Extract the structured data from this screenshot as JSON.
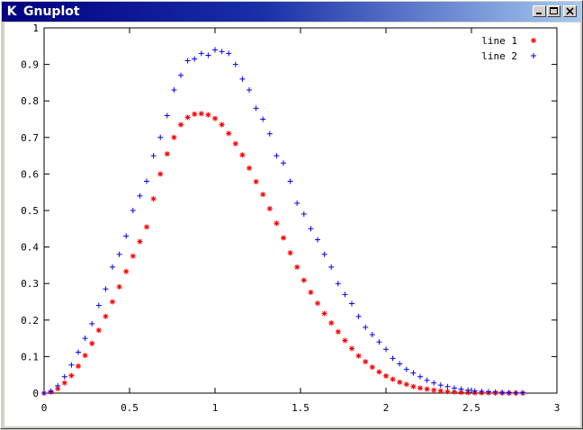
{
  "window": {
    "title": "Gnuplot",
    "icon": "k-icon",
    "controls": [
      "minimize-icon",
      "maximize-icon",
      "close-icon"
    ]
  },
  "chart_data": {
    "type": "scatter",
    "xlim": [
      0,
      3
    ],
    "ylim": [
      0,
      1
    ],
    "xticks": [
      "0",
      "0.5",
      "1",
      "1.5",
      "2",
      "2.5",
      "3"
    ],
    "yticks": [
      "0",
      "0.1",
      "0.2",
      "0.3",
      "0.4",
      "0.5",
      "0.6",
      "0.7",
      "0.8",
      "0.9",
      "1"
    ],
    "grid": false,
    "legend": "top-right",
    "series": [
      {
        "name": "line 1",
        "marker": "asterisk",
        "color": "#ff0000",
        "x": [
          0.0,
          0.04,
          0.08,
          0.12,
          0.16,
          0.2,
          0.24,
          0.28,
          0.32,
          0.36,
          0.4,
          0.44,
          0.48,
          0.52,
          0.56,
          0.6,
          0.64,
          0.68,
          0.72,
          0.76,
          0.8,
          0.84,
          0.88,
          0.92,
          0.96,
          1.0,
          1.04,
          1.08,
          1.12,
          1.16,
          1.2,
          1.24,
          1.28,
          1.32,
          1.36,
          1.4,
          1.44,
          1.48,
          1.52,
          1.56,
          1.6,
          1.64,
          1.68,
          1.72,
          1.76,
          1.8,
          1.84,
          1.88,
          1.92,
          1.96,
          2.0,
          2.04,
          2.08,
          2.12,
          2.16,
          2.2,
          2.24,
          2.28,
          2.32,
          2.36,
          2.4,
          2.44,
          2.48,
          2.52,
          2.56,
          2.6,
          2.64,
          2.68,
          2.72,
          2.76,
          2.8
        ],
        "y": [
          0.0,
          0.003,
          0.012,
          0.028,
          0.048,
          0.074,
          0.103,
          0.136,
          0.172,
          0.21,
          0.25,
          0.291,
          0.333,
          0.375,
          0.415,
          0.455,
          0.532,
          0.6,
          0.655,
          0.7,
          0.735,
          0.755,
          0.764,
          0.765,
          0.762,
          0.752,
          0.735,
          0.711,
          0.683,
          0.652,
          0.616,
          0.579,
          0.544,
          0.505,
          0.465,
          0.425,
          0.384,
          0.345,
          0.309,
          0.276,
          0.246,
          0.218,
          0.192,
          0.168,
          0.144,
          0.122,
          0.102,
          0.086,
          0.071,
          0.058,
          0.047,
          0.038,
          0.03,
          0.024,
          0.018,
          0.014,
          0.011,
          0.008,
          0.006,
          0.004,
          0.003,
          0.002,
          0.0015,
          0.001,
          0.0008,
          0.0006,
          0.0004,
          0.0003,
          0.0002,
          0.0001,
          0.0001
        ]
      },
      {
        "name": "line 2",
        "marker": "plus",
        "color": "#0000ff",
        "x": [
          0.0,
          0.04,
          0.08,
          0.12,
          0.16,
          0.2,
          0.24,
          0.28,
          0.32,
          0.36,
          0.4,
          0.44,
          0.48,
          0.52,
          0.56,
          0.6,
          0.64,
          0.68,
          0.72,
          0.76,
          0.8,
          0.84,
          0.88,
          0.92,
          0.96,
          1.0,
          1.04,
          1.08,
          1.12,
          1.16,
          1.2,
          1.24,
          1.28,
          1.32,
          1.36,
          1.4,
          1.44,
          1.48,
          1.52,
          1.56,
          1.6,
          1.64,
          1.68,
          1.72,
          1.76,
          1.8,
          1.84,
          1.88,
          1.92,
          1.96,
          2.0,
          2.04,
          2.08,
          2.12,
          2.16,
          2.2,
          2.24,
          2.28,
          2.32,
          2.36,
          2.4,
          2.44,
          2.48,
          2.52,
          2.56,
          2.6,
          2.64,
          2.68,
          2.72,
          2.76,
          2.8
        ],
        "y": [
          0.0,
          0.005,
          0.02,
          0.045,
          0.077,
          0.112,
          0.15,
          0.19,
          0.24,
          0.285,
          0.345,
          0.38,
          0.43,
          0.5,
          0.54,
          0.58,
          0.65,
          0.7,
          0.76,
          0.83,
          0.87,
          0.91,
          0.915,
          0.93,
          0.925,
          0.94,
          0.935,
          0.93,
          0.9,
          0.86,
          0.83,
          0.78,
          0.75,
          0.71,
          0.65,
          0.63,
          0.58,
          0.52,
          0.49,
          0.45,
          0.42,
          0.38,
          0.345,
          0.3,
          0.27,
          0.245,
          0.21,
          0.18,
          0.16,
          0.14,
          0.12,
          0.095,
          0.08,
          0.065,
          0.055,
          0.045,
          0.035,
          0.028,
          0.022,
          0.018,
          0.014,
          0.011,
          0.008,
          0.006,
          0.005,
          0.004,
          0.003,
          0.002,
          0.0015,
          0.001,
          0.0008
        ]
      }
    ]
  }
}
